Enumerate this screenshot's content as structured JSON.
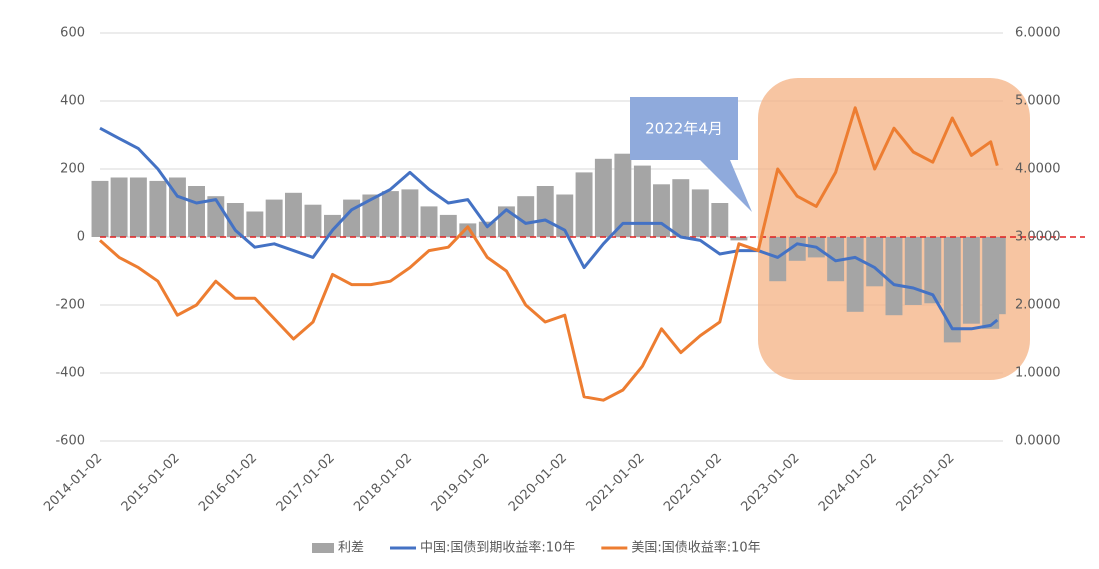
{
  "chart_data": {
    "type": "combo",
    "annotation": "2022年4月",
    "x": [
      "2014-01-02",
      "2014-04-02",
      "2014-07-02",
      "2014-10-02",
      "2015-01-02",
      "2015-04-02",
      "2015-07-02",
      "2015-10-02",
      "2016-01-02",
      "2016-04-02",
      "2016-07-02",
      "2016-10-02",
      "2017-01-02",
      "2017-04-02",
      "2017-07-02",
      "2017-10-02",
      "2018-01-02",
      "2018-04-02",
      "2018-07-02",
      "2018-10-02",
      "2019-01-02",
      "2019-04-02",
      "2019-07-02",
      "2019-10-02",
      "2020-01-02",
      "2020-04-02",
      "2020-07-02",
      "2020-10-02",
      "2021-01-02",
      "2021-04-02",
      "2021-07-02",
      "2021-10-02",
      "2022-01-02",
      "2022-04-02",
      "2022-07-02",
      "2022-10-02",
      "2023-01-02",
      "2023-04-02",
      "2023-07-02",
      "2023-10-02",
      "2024-01-02",
      "2024-04-02",
      "2024-07-02",
      "2024-10-02",
      "2025-01-02",
      "2025-04-02",
      "2025-07-02",
      "2025-08-02"
    ],
    "xlim": [
      "2014-01-02",
      "2025-08-29"
    ],
    "xticks": [
      "2014-01-02",
      "2015-01-02",
      "2016-01-02",
      "2017-01-02",
      "2018-01-02",
      "2019-01-02",
      "2020-01-02",
      "2021-01-02",
      "2022-01-02",
      "2023-01-02",
      "2024-01-02",
      "2025-01-02"
    ],
    "ylim": [
      -600,
      600
    ],
    "yticks": [
      -600,
      -400,
      -200,
      0,
      200,
      400,
      600
    ],
    "y2lim": [
      0,
      6
    ],
    "y2ticks": [
      {
        "value": 0,
        "label": "0.0000"
      },
      {
        "value": 1,
        "label": "1.0000"
      },
      {
        "value": 2,
        "label": "2.0000"
      },
      {
        "value": 3,
        "label": "3.0000"
      },
      {
        "value": 4,
        "label": "4.0000"
      },
      {
        "value": 5,
        "label": "5.0000"
      },
      {
        "value": 6,
        "label": "6.0000"
      }
    ],
    "grid": true,
    "hline": {
      "value": 0,
      "color": "#e02020",
      "style": "dashed"
    },
    "legend": "bottom",
    "series": [
      {
        "name": "利差",
        "type": "bar",
        "color": "#a5a5a5",
        "values": [
          165,
          175,
          175,
          165,
          175,
          150,
          120,
          100,
          75,
          110,
          130,
          95,
          65,
          110,
          125,
          135,
          140,
          90,
          65,
          40,
          45,
          90,
          120,
          150,
          125,
          190,
          230,
          245,
          210,
          155,
          170,
          140,
          100,
          -10,
          0,
          -130,
          -70,
          -60,
          -130,
          -220,
          -145,
          -230,
          -200,
          -195,
          -310,
          -255,
          -270,
          -227
        ]
      },
      {
        "name": "中国:国债到期收益率:10年",
        "type": "line",
        "axis": "y2",
        "color": "#4472c4",
        "values": [
          4.6,
          4.45,
          4.3,
          4.0,
          3.6,
          3.5,
          3.55,
          3.1,
          2.85,
          2.9,
          2.8,
          2.7,
          3.1,
          3.4,
          3.55,
          3.7,
          3.95,
          3.7,
          3.5,
          3.55,
          3.15,
          3.4,
          3.2,
          3.25,
          3.1,
          2.55,
          2.9,
          3.2,
          3.2,
          3.2,
          3.0,
          2.95,
          2.75,
          2.8,
          2.8,
          2.7,
          2.9,
          2.85,
          2.65,
          2.7,
          2.55,
          2.3,
          2.25,
          2.15,
          1.65,
          1.65,
          1.7,
          1.78
        ]
      },
      {
        "name": "美国:国债收益率:10年",
        "type": "line",
        "axis": "y2",
        "color": "#ed7d31",
        "values": [
          2.95,
          2.7,
          2.55,
          2.35,
          1.85,
          2.0,
          2.35,
          2.1,
          2.1,
          1.8,
          1.5,
          1.75,
          2.45,
          2.3,
          2.3,
          2.35,
          2.55,
          2.8,
          2.85,
          3.15,
          2.7,
          2.5,
          2.0,
          1.75,
          1.85,
          0.65,
          0.6,
          0.75,
          1.1,
          1.65,
          1.3,
          1.55,
          1.75,
          2.9,
          2.8,
          4.0,
          3.6,
          3.45,
          3.95,
          4.9,
          4.0,
          4.6,
          4.25,
          4.1,
          4.75,
          4.2,
          4.4,
          4.05
        ]
      }
    ]
  }
}
